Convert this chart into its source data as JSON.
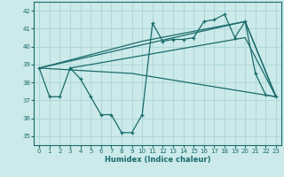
{
  "xlabel": "Humidex (Indice chaleur)",
  "ylabel": "",
  "xlim": [
    -0.5,
    23.5
  ],
  "ylim": [
    34.5,
    42.5
  ],
  "yticks": [
    35,
    36,
    37,
    38,
    39,
    40,
    41,
    42
  ],
  "xticks": [
    0,
    1,
    2,
    3,
    4,
    5,
    6,
    7,
    8,
    9,
    10,
    11,
    12,
    13,
    14,
    15,
    16,
    17,
    18,
    19,
    20,
    21,
    22,
    23
  ],
  "bg_color": "#cceaea",
  "line_color": "#1a6b6b",
  "grid_color": "#b0d8d8",
  "lines": [
    {
      "x": [
        0,
        1,
        2,
        3,
        4,
        5,
        6,
        7,
        8,
        9,
        10,
        11,
        12,
        13,
        14,
        15,
        16,
        17,
        18,
        19,
        20,
        21,
        22,
        23
      ],
      "y": [
        38.8,
        37.2,
        37.2,
        38.8,
        38.2,
        37.2,
        36.2,
        36.2,
        35.2,
        35.2,
        36.2,
        41.3,
        40.3,
        40.4,
        40.4,
        40.5,
        41.4,
        41.5,
        41.8,
        40.5,
        41.4,
        38.5,
        37.3,
        37.2
      ],
      "has_markers": true
    },
    {
      "comment": "diagonal line top - from 0,38.8 to 20,41.4 to 23,37.2",
      "x": [
        0,
        20,
        23
      ],
      "y": [
        38.8,
        41.4,
        37.2
      ],
      "has_markers": false
    },
    {
      "x": [
        3,
        20,
        23
      ],
      "y": [
        38.8,
        40.5,
        37.2
      ],
      "has_markers": false
    },
    {
      "comment": "diagonal line mid - from 0,38.8 to 10,40.3 to 20,41.4 to 23,37.2",
      "x": [
        0,
        10,
        20,
        23
      ],
      "y": [
        38.8,
        40.3,
        41.4,
        37.2
      ],
      "has_markers": false
    },
    {
      "comment": "low flat diagonal - from 0,38.8 to 9,38.5 to 23,37.2",
      "x": [
        0,
        9,
        23
      ],
      "y": [
        38.8,
        38.5,
        37.2
      ],
      "has_markers": false
    }
  ]
}
